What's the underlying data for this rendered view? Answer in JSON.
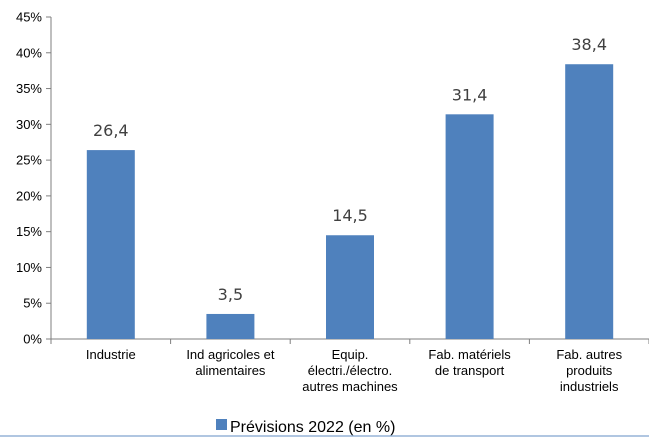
{
  "chart_data": {
    "type": "bar",
    "categories": [
      [
        "Industrie"
      ],
      [
        "Ind agricoles et",
        "alimentaires"
      ],
      [
        "Equip.",
        "électri./électro.",
        "autres machines"
      ],
      [
        "Fab. matériels",
        "de transport"
      ],
      [
        "Fab. autres",
        "produits",
        "industriels"
      ]
    ],
    "series": [
      {
        "name": "Prévisions 2022 (en %)",
        "values": [
          26.4,
          3.5,
          14.5,
          31.4,
          38.4
        ],
        "value_labels": [
          "26,4",
          "3,5",
          "14,5",
          "31,4",
          "38,4"
        ]
      }
    ],
    "y_ticks": [
      "0%",
      "5%",
      "10%",
      "15%",
      "20%",
      "25%",
      "30%",
      "35%",
      "40%",
      "45%"
    ],
    "ylim": [
      0,
      45
    ],
    "grid": false,
    "legend_position": "bottom",
    "colors": {
      "bar": "#4f81bd",
      "axis": "#7f7f7f",
      "bottom_rule": "#95b3d7"
    }
  }
}
